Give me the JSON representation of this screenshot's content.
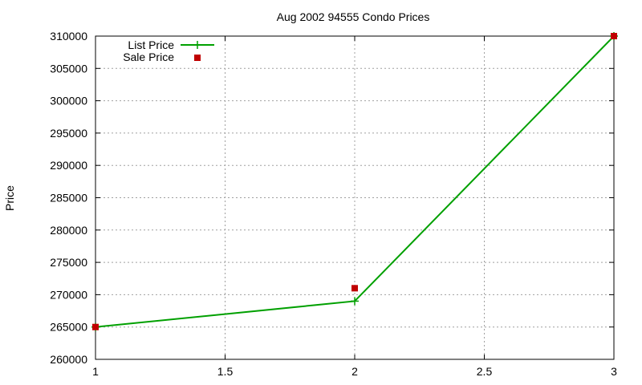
{
  "chart_data": {
    "type": "line",
    "title": "Aug 2002 94555 Condo Prices",
    "xlabel": "",
    "ylabel": "Price",
    "xlim": [
      1,
      3
    ],
    "ylim": [
      260000,
      310000
    ],
    "x_ticks": [
      "1",
      "1.5",
      "2",
      "2.5",
      "3"
    ],
    "y_ticks": [
      "260000",
      "265000",
      "270000",
      "275000",
      "280000",
      "285000",
      "290000",
      "295000",
      "300000",
      "305000",
      "310000"
    ],
    "grid": true,
    "legend_position": "top-left",
    "series": [
      {
        "name": "List Price",
        "style": "line-with-plus-markers",
        "color": "#00a000",
        "x": [
          1,
          2,
          3
        ],
        "y": [
          265000,
          269000,
          310000
        ]
      },
      {
        "name": "Sale Price",
        "style": "square-markers",
        "color": "#c00000",
        "x": [
          1,
          2,
          3
        ],
        "y": [
          265000,
          271000,
          310000
        ]
      }
    ]
  }
}
